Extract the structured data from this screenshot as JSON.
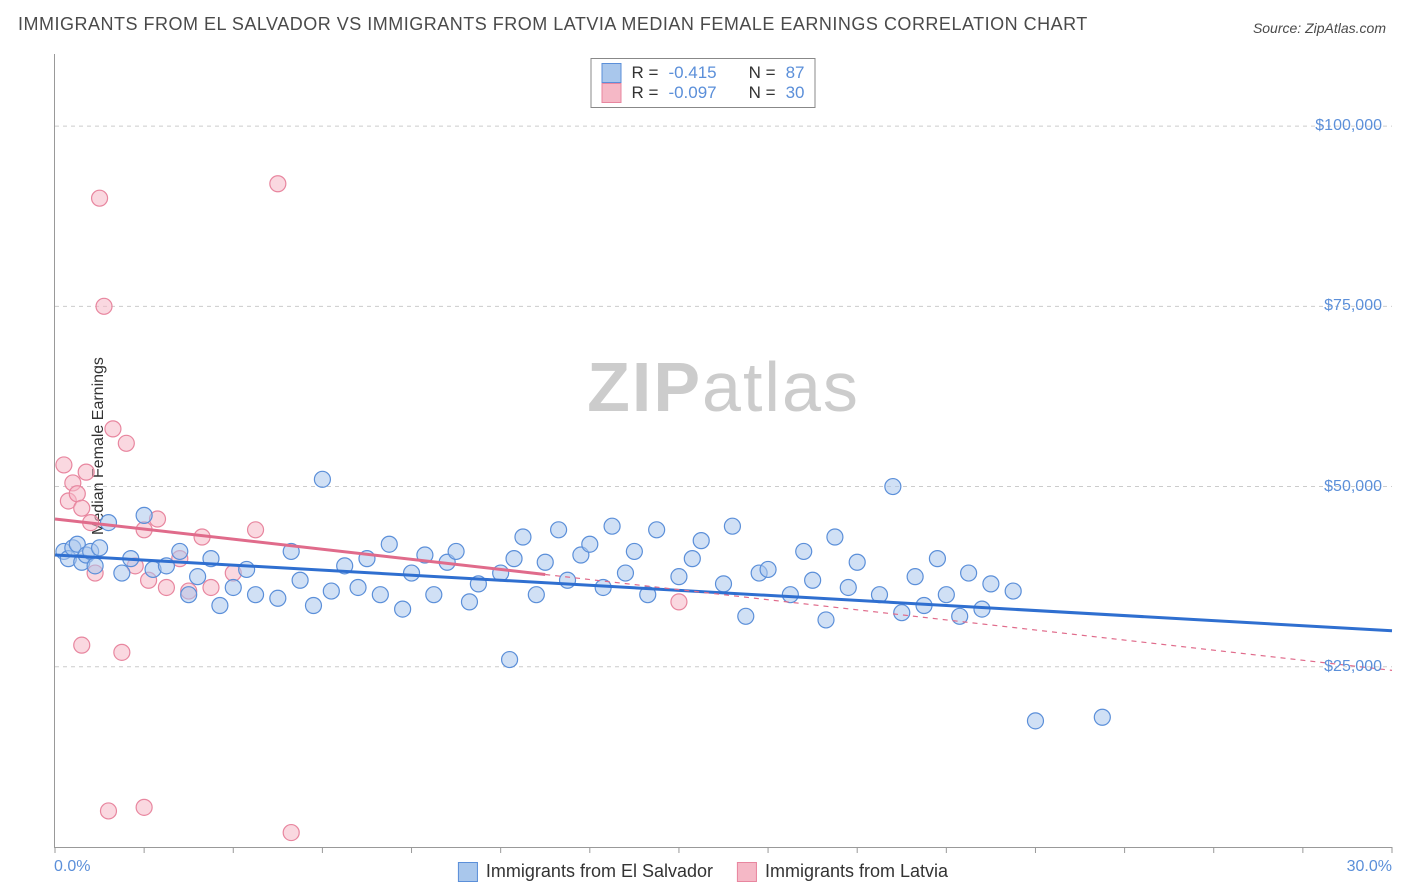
{
  "title": "IMMIGRANTS FROM EL SALVADOR VS IMMIGRANTS FROM LATVIA MEDIAN FEMALE EARNINGS CORRELATION CHART",
  "source": "Source: ZipAtlas.com",
  "y_axis_label": "Median Female Earnings",
  "watermark": {
    "bold": "ZIP",
    "light": "atlas"
  },
  "chart": {
    "type": "scatter",
    "background_color": "#ffffff",
    "grid_color": "#cccccc",
    "axis_color": "#999999",
    "tick_label_color": "#5B8FD9",
    "xlim": [
      0,
      30
    ],
    "ylim": [
      0,
      110000
    ],
    "y_ticks": [
      {
        "value": 25000,
        "label": "$25,000"
      },
      {
        "value": 50000,
        "label": "$50,000"
      },
      {
        "value": 75000,
        "label": "$75,000"
      },
      {
        "value": 100000,
        "label": "$100,000"
      }
    ],
    "x_tick_positions": [
      0,
      2,
      4,
      6,
      8,
      10,
      12,
      14,
      16,
      18,
      20,
      22,
      24,
      26,
      28,
      30
    ],
    "x_labels": {
      "min": "0.0%",
      "max": "30.0%"
    },
    "marker_radius": 8,
    "marker_stroke_width": 1.2,
    "trend_line_width_solid": 3,
    "trend_line_width_dash": 1.2
  },
  "series": [
    {
      "name": "Immigrants from El Salvador",
      "fill": "#A9C7EC",
      "stroke": "#5B8FD9",
      "fill_opacity": 0.55,
      "correlation_R": "-0.415",
      "N": "87",
      "trend": {
        "x1": 0,
        "y1": 40500,
        "x2": 30,
        "y2": 30000,
        "solid_until_x": 30,
        "color": "#2F6FD0"
      },
      "points": [
        [
          0.2,
          41000
        ],
        [
          0.3,
          40000
        ],
        [
          0.4,
          41500
        ],
        [
          0.5,
          42000
        ],
        [
          0.6,
          39500
        ],
        [
          0.7,
          40500
        ],
        [
          0.8,
          41000
        ],
        [
          0.9,
          39000
        ],
        [
          1.0,
          41500
        ],
        [
          1.2,
          45000
        ],
        [
          1.5,
          38000
        ],
        [
          1.7,
          40000
        ],
        [
          2.0,
          46000
        ],
        [
          2.2,
          38500
        ],
        [
          2.5,
          39000
        ],
        [
          2.8,
          41000
        ],
        [
          3.0,
          35000
        ],
        [
          3.2,
          37500
        ],
        [
          3.5,
          40000
        ],
        [
          3.7,
          33500
        ],
        [
          4.0,
          36000
        ],
        [
          4.3,
          38500
        ],
        [
          4.5,
          35000
        ],
        [
          5.0,
          34500
        ],
        [
          5.3,
          41000
        ],
        [
          5.5,
          37000
        ],
        [
          5.8,
          33500
        ],
        [
          6.0,
          51000
        ],
        [
          6.2,
          35500
        ],
        [
          6.5,
          39000
        ],
        [
          6.8,
          36000
        ],
        [
          7.0,
          40000
        ],
        [
          7.3,
          35000
        ],
        [
          7.5,
          42000
        ],
        [
          7.8,
          33000
        ],
        [
          8.0,
          38000
        ],
        [
          8.3,
          40500
        ],
        [
          8.5,
          35000
        ],
        [
          8.8,
          39500
        ],
        [
          9.0,
          41000
        ],
        [
          9.3,
          34000
        ],
        [
          9.5,
          36500
        ],
        [
          10.0,
          38000
        ],
        [
          10.2,
          26000
        ],
        [
          10.3,
          40000
        ],
        [
          10.5,
          43000
        ],
        [
          10.8,
          35000
        ],
        [
          11.0,
          39500
        ],
        [
          11.3,
          44000
        ],
        [
          11.5,
          37000
        ],
        [
          11.8,
          40500
        ],
        [
          12.0,
          42000
        ],
        [
          12.3,
          36000
        ],
        [
          12.5,
          44500
        ],
        [
          12.8,
          38000
        ],
        [
          13.0,
          41000
        ],
        [
          13.3,
          35000
        ],
        [
          13.5,
          44000
        ],
        [
          14.0,
          37500
        ],
        [
          14.3,
          40000
        ],
        [
          14.5,
          42500
        ],
        [
          15.0,
          36500
        ],
        [
          15.2,
          44500
        ],
        [
          15.5,
          32000
        ],
        [
          15.8,
          38000
        ],
        [
          16.0,
          38500
        ],
        [
          16.5,
          35000
        ],
        [
          16.8,
          41000
        ],
        [
          17.0,
          37000
        ],
        [
          17.3,
          31500
        ],
        [
          17.5,
          43000
        ],
        [
          17.8,
          36000
        ],
        [
          18.0,
          39500
        ],
        [
          18.5,
          35000
        ],
        [
          18.8,
          50000
        ],
        [
          19.0,
          32500
        ],
        [
          19.3,
          37500
        ],
        [
          19.8,
          40000
        ],
        [
          20.0,
          35000
        ],
        [
          20.5,
          38000
        ],
        [
          20.8,
          33000
        ],
        [
          21.0,
          36500
        ],
        [
          21.5,
          35500
        ],
        [
          22.0,
          17500
        ],
        [
          23.5,
          18000
        ],
        [
          19.5,
          33500
        ],
        [
          20.3,
          32000
        ]
      ]
    },
    {
      "name": "Immigrants from Latvia",
      "fill": "#F5B8C6",
      "stroke": "#E8869F",
      "fill_opacity": 0.55,
      "correlation_R": "-0.097",
      "N": "30",
      "trend": {
        "x1": 0,
        "y1": 45500,
        "x2": 30,
        "y2": 24500,
        "solid_until_x": 11,
        "color": "#E06B8B"
      },
      "points": [
        [
          0.2,
          53000
        ],
        [
          0.3,
          48000
        ],
        [
          0.4,
          50500
        ],
        [
          0.5,
          49000
        ],
        [
          0.6,
          47000
        ],
        [
          0.7,
          52000
        ],
        [
          0.8,
          45000
        ],
        [
          0.9,
          38000
        ],
        [
          1.0,
          90000
        ],
        [
          1.1,
          75000
        ],
        [
          1.3,
          58000
        ],
        [
          1.5,
          27000
        ],
        [
          1.6,
          56000
        ],
        [
          1.8,
          39000
        ],
        [
          2.0,
          44000
        ],
        [
          2.1,
          37000
        ],
        [
          2.3,
          45500
        ],
        [
          2.5,
          36000
        ],
        [
          2.8,
          40000
        ],
        [
          3.0,
          35500
        ],
        [
          3.3,
          43000
        ],
        [
          3.5,
          36000
        ],
        [
          4.0,
          38000
        ],
        [
          4.5,
          44000
        ],
        [
          5.0,
          92000
        ],
        [
          5.3,
          2000
        ],
        [
          1.2,
          5000
        ],
        [
          2.0,
          5500
        ],
        [
          0.6,
          28000
        ],
        [
          14.0,
          34000
        ]
      ]
    }
  ],
  "legend_top_labels": {
    "R": "R =",
    "N": "N ="
  },
  "legend_bottom": {
    "series1": "Immigrants from El Salvador",
    "series2": "Immigrants from Latvia"
  },
  "title_fontsize": 18,
  "label_fontsize": 16,
  "tick_fontsize": 16,
  "legend_fontsize": 17
}
